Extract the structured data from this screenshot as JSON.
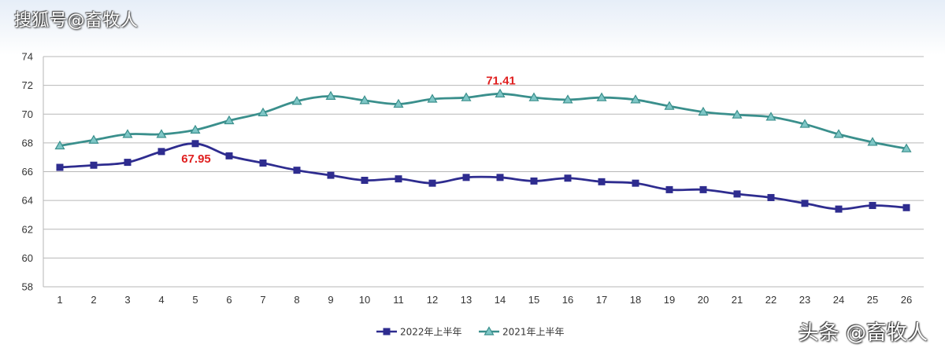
{
  "watermark_top": "搜狐号@畜牧人",
  "watermark_bottom": "头条 @畜牧人",
  "colors": {
    "series_2022": "#2e2c8f",
    "series_2021": "#3a8f8c",
    "marker_2021_fill": "#7ec6c6",
    "annotation": "#e02020",
    "grid": "#b7b7b7"
  },
  "chart_data": {
    "type": "line",
    "title": "",
    "xlabel": "",
    "ylabel": "",
    "x": [
      1,
      2,
      3,
      4,
      5,
      6,
      7,
      8,
      9,
      10,
      11,
      12,
      13,
      14,
      15,
      16,
      17,
      18,
      19,
      20,
      21,
      22,
      23,
      24,
      25,
      26
    ],
    "y_ticks": [
      58,
      60,
      62,
      64,
      66,
      68,
      70,
      72,
      74
    ],
    "ylim": [
      58,
      74
    ],
    "legend_position": "bottom-center",
    "series": [
      {
        "name": "2022年上半年",
        "marker": "square",
        "values": [
          66.3,
          66.45,
          66.65,
          67.4,
          67.95,
          67.1,
          66.6,
          66.1,
          65.75,
          65.4,
          65.5,
          65.2,
          65.6,
          65.6,
          65.35,
          65.55,
          65.3,
          65.2,
          64.75,
          64.75,
          64.45,
          64.2,
          63.8,
          63.4,
          63.65,
          63.5
        ]
      },
      {
        "name": "2021年上半年",
        "marker": "triangle",
        "values": [
          67.8,
          68.2,
          68.6,
          68.6,
          68.9,
          69.55,
          70.1,
          70.9,
          71.25,
          70.95,
          70.7,
          71.05,
          71.15,
          71.41,
          71.15,
          71.0,
          71.15,
          71.0,
          70.55,
          70.15,
          69.95,
          69.8,
          69.3,
          68.6,
          68.05,
          67.6
        ]
      }
    ],
    "annotations": [
      {
        "text": "67.95",
        "series": "2022年上半年",
        "x": 5,
        "position": "below"
      },
      {
        "text": "71.41",
        "series": "2021年上半年",
        "x": 14,
        "position": "above"
      }
    ]
  }
}
